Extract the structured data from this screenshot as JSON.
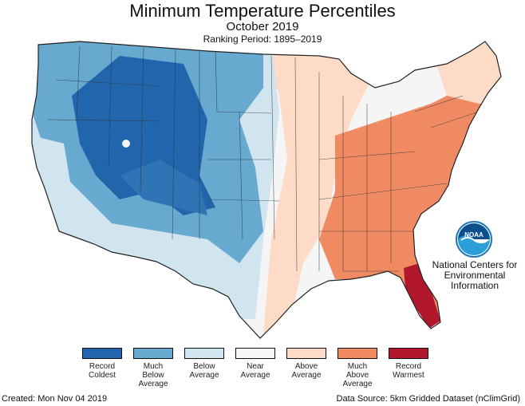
{
  "header": {
    "title": "Minimum Temperature Percentiles",
    "subtitle": "October 2019",
    "period": "Ranking Period: 1895–2019"
  },
  "organization": {
    "logo_text": "NOAA",
    "name_lines": [
      "National Centers for",
      "Environmental",
      "Information"
    ]
  },
  "legend": [
    {
      "lines": [
        "Record",
        "Coldest"
      ],
      "color": "#2166ac"
    },
    {
      "lines": [
        "Much",
        "Below",
        "Average"
      ],
      "color": "#67a9cf"
    },
    {
      "lines": [
        "Below",
        "Average"
      ],
      "color": "#d1e5f0"
    },
    {
      "lines": [
        "Near",
        "Average"
      ],
      "color": "#f7f7f7"
    },
    {
      "lines": [
        "Above",
        "Average"
      ],
      "color": "#fddbc7"
    },
    {
      "lines": [
        "Much",
        "Above",
        "Average"
      ],
      "color": "#ef8a62"
    },
    {
      "lines": [
        "Record",
        "Warmest"
      ],
      "color": "#b2182b"
    }
  ],
  "footer": {
    "created": "Created: Mon Nov 04 2019",
    "source": "Data Source: 5km Gridded Dataset (nClimGrid)"
  }
}
